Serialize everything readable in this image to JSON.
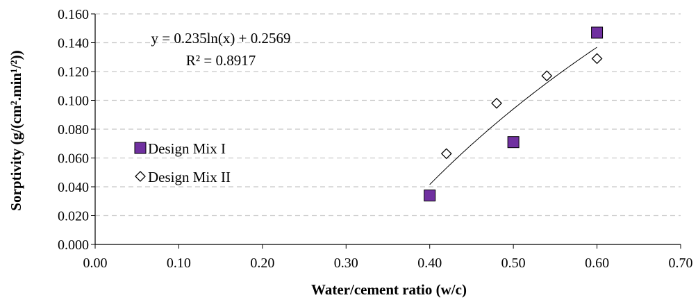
{
  "chart_data": {
    "type": "scatter",
    "xlabel": "Water/cement ratio (w/c)",
    "ylabel": "Sorptivity (g/(cm².min¹/²))",
    "xlim": [
      0.0,
      0.7
    ],
    "ylim": [
      0.0,
      0.16
    ],
    "x_ticks": [
      "0.00",
      "0.10",
      "0.20",
      "0.30",
      "0.40",
      "0.50",
      "0.60",
      "0.70"
    ],
    "y_ticks": [
      "0.000",
      "0.020",
      "0.040",
      "0.060",
      "0.080",
      "0.100",
      "0.120",
      "0.140",
      "0.160"
    ],
    "grid": "horizontal dashed",
    "legend_position": "left",
    "series": [
      {
        "name": "Design Mix I",
        "marker": "square",
        "color": "#7030A0",
        "points": [
          [
            0.4,
            0.034
          ],
          [
            0.5,
            0.071
          ],
          [
            0.6,
            0.147
          ]
        ]
      },
      {
        "name": "Design Mix II",
        "marker": "diamond",
        "color": "#ffffff",
        "points": [
          [
            0.42,
            0.063
          ],
          [
            0.48,
            0.098
          ],
          [
            0.54,
            0.117
          ],
          [
            0.6,
            0.129
          ]
        ]
      }
    ],
    "trendline": {
      "type": "logarithmic",
      "a": 0.235,
      "b": 0.2569,
      "x_range": [
        0.4,
        0.6
      ],
      "equation": "y = 0.235ln(x) + 0.2569",
      "r_squared": "R² = 0.8917"
    }
  }
}
